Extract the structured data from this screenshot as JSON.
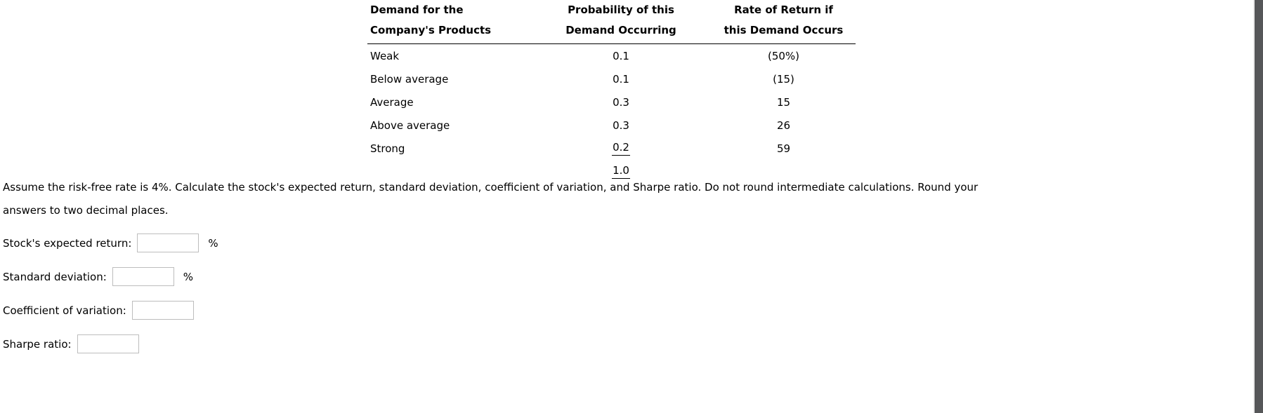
{
  "table": {
    "headers": {
      "demand": {
        "line1": "Demand for the",
        "line2": "Company's Products"
      },
      "probability": {
        "line1": "Probability of this",
        "line2": "Demand Occurring"
      },
      "rate": {
        "line1": "Rate of Return if",
        "line2": "this Demand Occurs"
      }
    },
    "rows": [
      {
        "demand": "Weak",
        "probability": "0.1",
        "rate": "(50%)"
      },
      {
        "demand": "Below average",
        "probability": "0.1",
        "rate": "(15)"
      },
      {
        "demand": "Average",
        "probability": "0.3",
        "rate": "15"
      },
      {
        "demand": "Above average",
        "probability": "0.3",
        "rate": "26"
      },
      {
        "demand": "Strong",
        "probability": "0.2",
        "rate": "59"
      }
    ],
    "total_probability": "1.0"
  },
  "question": {
    "lines": [
      "Assume the risk-free rate is 4%. Calculate the stock's expected return, standard deviation, coefficient of variation, and Sharpe ratio. Do not round intermediate calculations. Round your",
      "answers to two decimal places."
    ]
  },
  "fields": {
    "expected_return": {
      "label": "Stock's expected return:",
      "value": "",
      "suffix": "%"
    },
    "standard_deviation": {
      "label": "Standard deviation:",
      "value": "",
      "suffix": "%"
    },
    "coefficient_of_variation": {
      "label": "Coefficient of variation:",
      "value": "",
      "suffix": ""
    },
    "sharpe_ratio": {
      "label": "Sharpe ratio:",
      "value": "",
      "suffix": ""
    }
  },
  "colors": {
    "text": "#000000",
    "background": "#ffffff",
    "input_border": "#bdbdbd",
    "scrollbar": "#565759"
  }
}
